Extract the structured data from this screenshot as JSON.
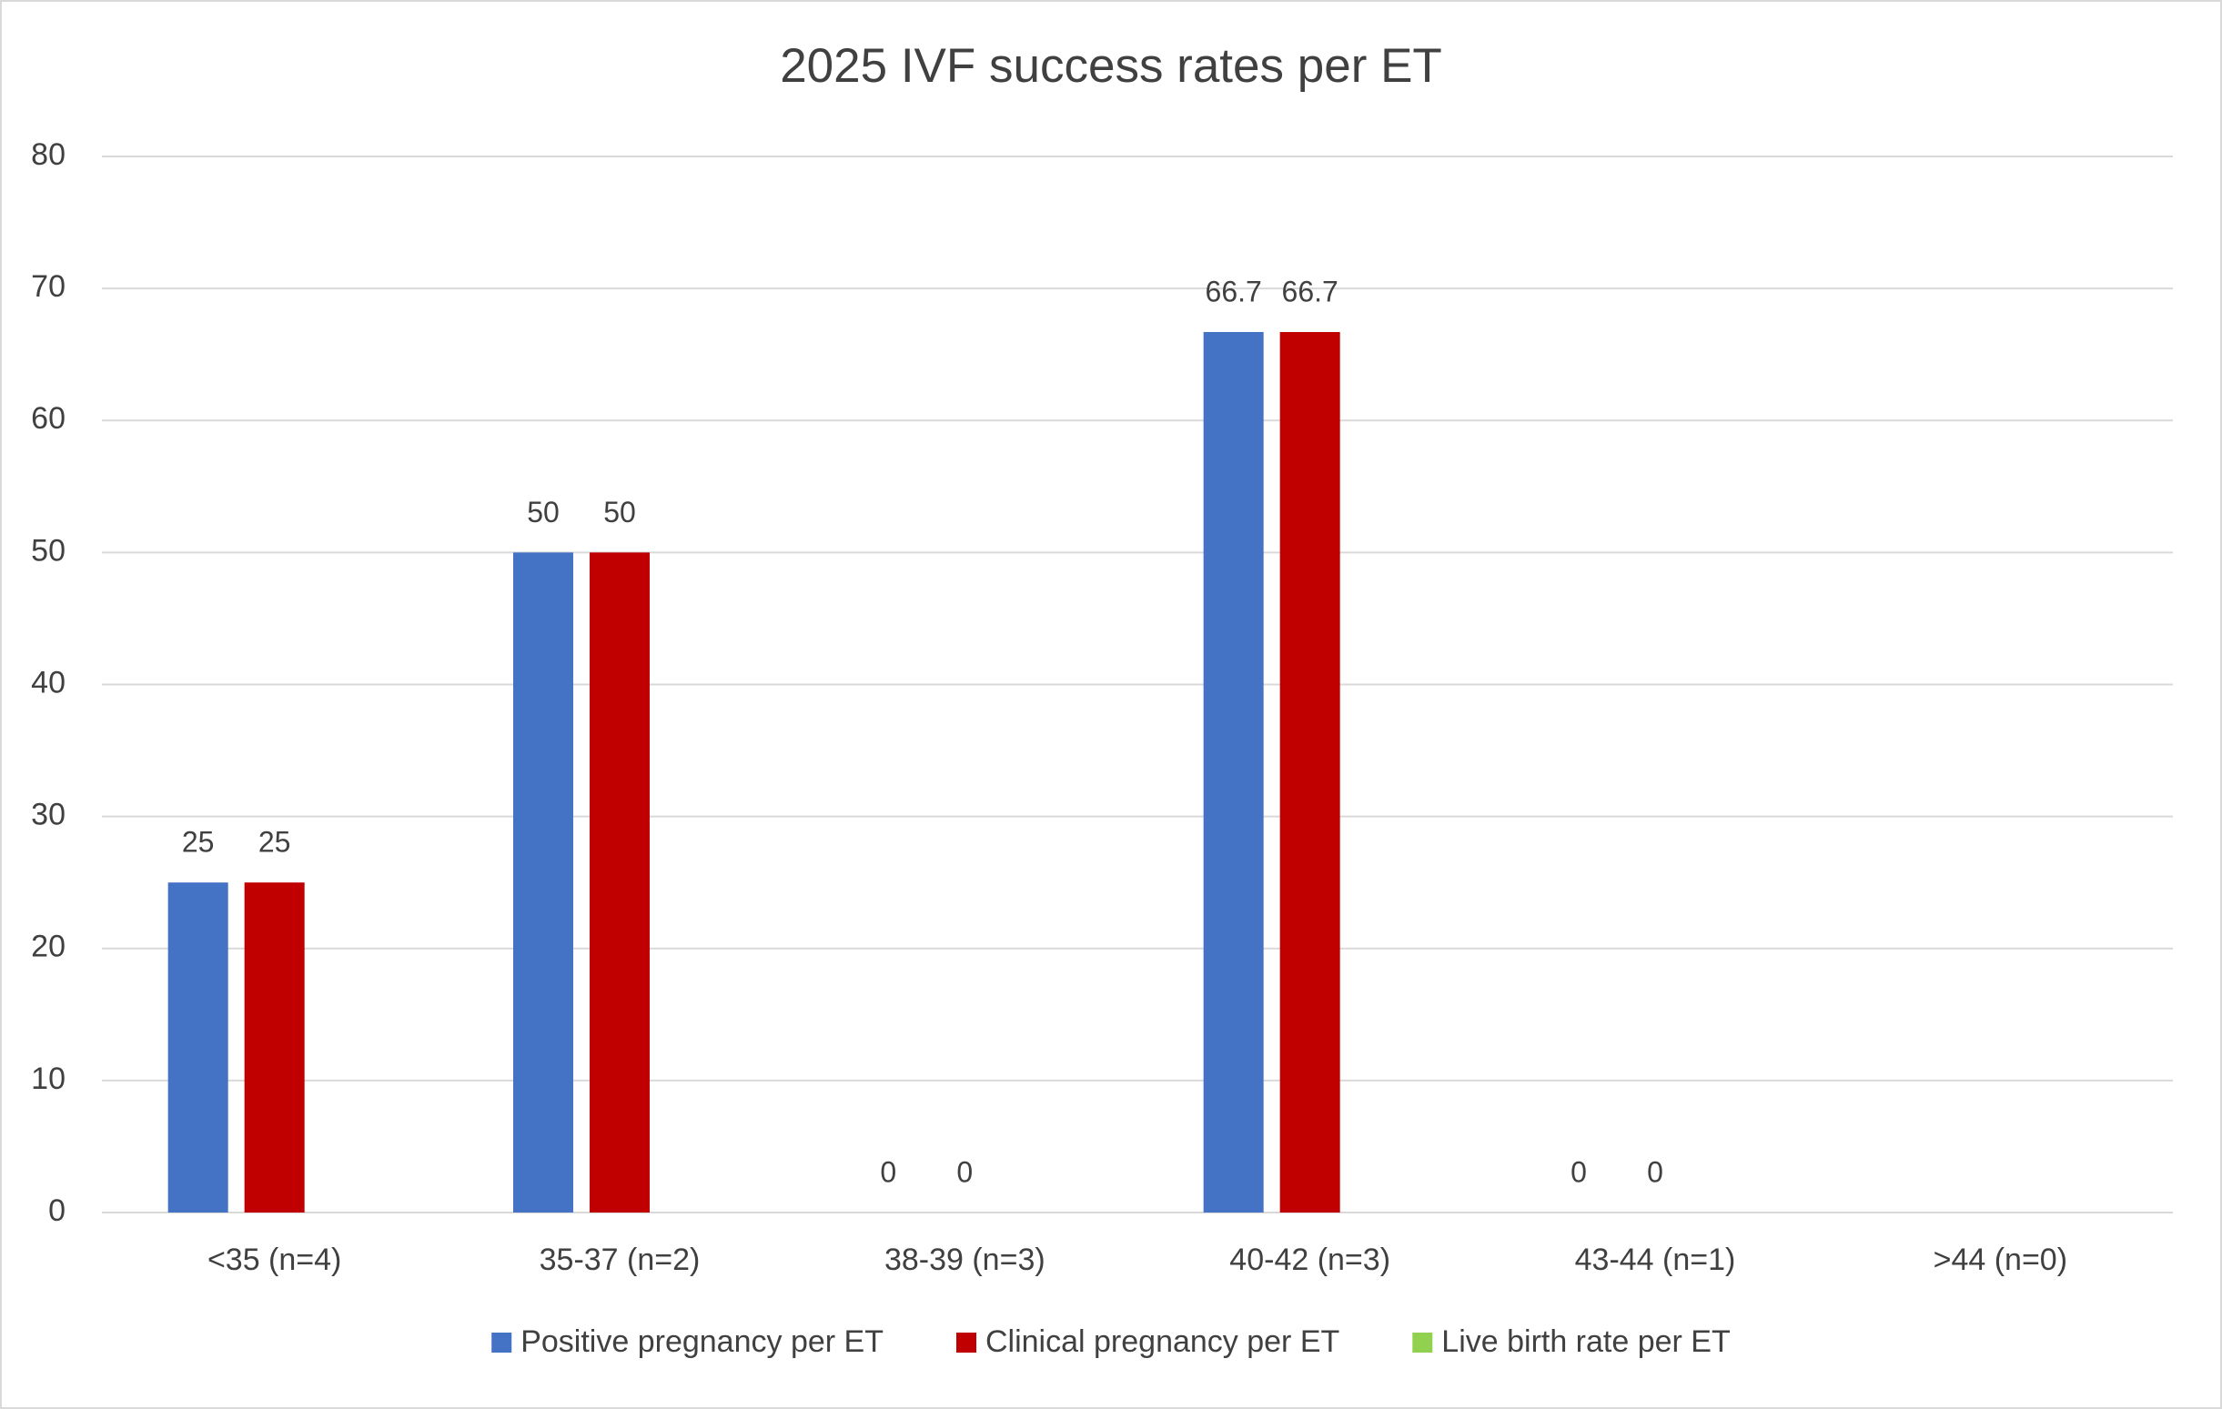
{
  "chart_data": {
    "type": "bar",
    "title": "2025 IVF success rates per ET",
    "categories": [
      "<35 (n=4)",
      "35-37 (n=2)",
      "38-39 (n=3)",
      "40-42 (n=3)",
      "43-44 (n=1)",
      ">44 (n=0)"
    ],
    "series": [
      {
        "name": "Positive pregnancy per ET",
        "color": "#4472c4",
        "values": [
          25,
          50,
          0,
          66.7,
          0,
          null
        ]
      },
      {
        "name": "Clinical pregnancy per ET",
        "color": "#c00000",
        "values": [
          25,
          50,
          0,
          66.7,
          0,
          null
        ]
      },
      {
        "name": "Live birth rate per ET",
        "color": "#92d050",
        "values": [
          null,
          null,
          null,
          null,
          null,
          null
        ]
      }
    ],
    "ylim": [
      0,
      80
    ],
    "yticks": [
      0,
      10,
      20,
      30,
      40,
      50,
      60,
      70,
      80
    ],
    "grid": true,
    "legend": "bottom"
  }
}
